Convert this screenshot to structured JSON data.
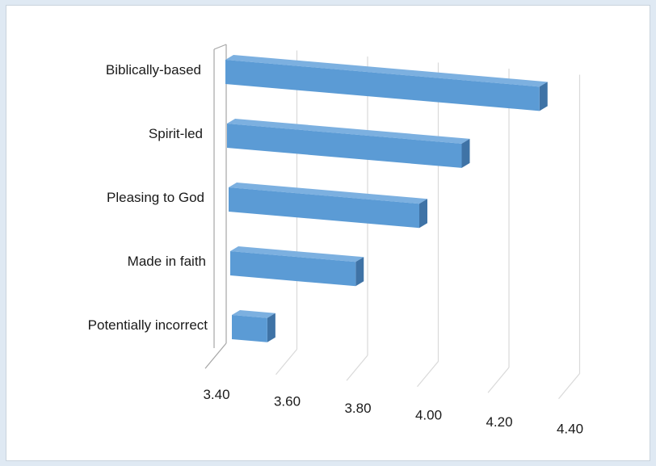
{
  "chart_data": {
    "type": "bar",
    "orientation": "horizontal",
    "style": "3d",
    "title": "",
    "xlabel": "",
    "ylabel": "",
    "categories": [
      "Biblically-based",
      "Spirit-led",
      "Pleasing to God",
      "Made in faith",
      "Potentially incorrect"
    ],
    "values": [
      4.3,
      4.08,
      3.96,
      3.78,
      3.53
    ],
    "xlim": [
      3.4,
      4.4
    ],
    "ticks": [
      "3.40",
      "3.60",
      "3.80",
      "4.00",
      "4.20",
      "4.40"
    ],
    "grid": true,
    "legend": "none",
    "colors": {
      "bar_front": "#5b9bd5",
      "bar_top": "#7cb0e0",
      "bar_side": "#3f73a6",
      "gridline": "#d9d9d9",
      "background": "#dfe9f3"
    }
  }
}
